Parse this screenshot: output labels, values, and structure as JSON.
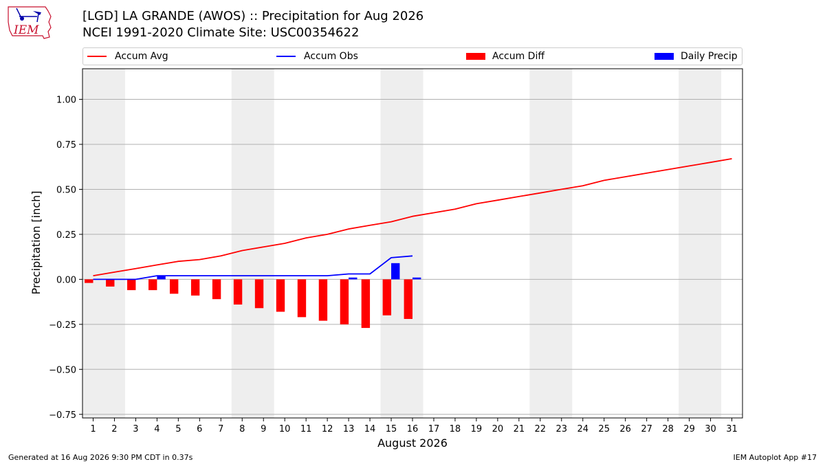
{
  "header": {
    "logo_text": "IEM",
    "title_line1": "[LGD] LA GRANDE (AWOS) :: Precipitation for Aug 2026",
    "title_line2": "NCEI 1991-2020 Climate Site: USC00354622"
  },
  "legend": {
    "placement": "top",
    "items": [
      {
        "label": "Accum Avg",
        "color": "#ff0000",
        "kind": "line"
      },
      {
        "label": "Accum Obs",
        "color": "#0000ff",
        "kind": "line"
      },
      {
        "label": "Accum Diff",
        "color": "#ff0000",
        "kind": "patch"
      },
      {
        "label": "Daily Precip",
        "color": "#0000ff",
        "kind": "patch"
      }
    ]
  },
  "footer": {
    "left": "Generated at 16 Aug 2026 9:30 PM CDT in 0.37s",
    "right": "IEM Autoplot App #17"
  },
  "colors": {
    "avg_line": "#ff0000",
    "obs_line": "#0000ff",
    "diff_bar": "#ff0000",
    "daily_bar": "#0000ff",
    "weekend_shade": "#eeeeee",
    "grid": "#b0b0b0",
    "logo": "#c8102e"
  },
  "chart_data": {
    "type": "line",
    "xlabel": "August 2026",
    "ylabel": "Precipitation [inch]",
    "xlim": [
      0.5,
      31.5
    ],
    "ylim": [
      -0.77,
      1.17
    ],
    "grid": true,
    "x_ticks": [
      1,
      2,
      3,
      4,
      5,
      6,
      7,
      8,
      9,
      10,
      11,
      12,
      13,
      14,
      15,
      16,
      17,
      18,
      19,
      20,
      21,
      22,
      23,
      24,
      25,
      26,
      27,
      28,
      29,
      30,
      31
    ],
    "y_ticks": [
      -0.75,
      -0.5,
      -0.25,
      0.0,
      0.25,
      0.5,
      0.75,
      1.0
    ],
    "y_tick_labels": [
      "−0.75",
      "−0.50",
      "−0.25",
      "0.00",
      "0.25",
      "0.50",
      "0.75",
      "1.00"
    ],
    "weekend_shading": [
      [
        1,
        2
      ],
      [
        8,
        9
      ],
      [
        15,
        16
      ],
      [
        22,
        23
      ],
      [
        29,
        30
      ]
    ],
    "series": [
      {
        "name": "Accum Avg",
        "type": "line",
        "x": [
          1,
          2,
          3,
          4,
          5,
          6,
          7,
          8,
          9,
          10,
          11,
          12,
          13,
          14,
          15,
          16,
          17,
          18,
          19,
          20,
          21,
          22,
          23,
          24,
          25,
          26,
          27,
          28,
          29,
          30,
          31
        ],
        "values": [
          0.02,
          0.04,
          0.06,
          0.08,
          0.1,
          0.11,
          0.13,
          0.16,
          0.18,
          0.2,
          0.23,
          0.25,
          0.28,
          0.3,
          0.32,
          0.35,
          0.37,
          0.39,
          0.42,
          0.44,
          0.46,
          0.48,
          0.5,
          0.52,
          0.55,
          0.57,
          0.59,
          0.61,
          0.63,
          0.65,
          0.67
        ]
      },
      {
        "name": "Accum Obs",
        "type": "line",
        "x": [
          1,
          2,
          3,
          4,
          5,
          6,
          7,
          8,
          9,
          10,
          11,
          12,
          13,
          14,
          15,
          16
        ],
        "values": [
          0.0,
          0.0,
          0.0,
          0.02,
          0.02,
          0.02,
          0.02,
          0.02,
          0.02,
          0.02,
          0.02,
          0.02,
          0.03,
          0.03,
          0.12,
          0.13
        ]
      },
      {
        "name": "Accum Diff",
        "type": "bar",
        "x": [
          1,
          2,
          3,
          4,
          5,
          6,
          7,
          8,
          9,
          10,
          11,
          12,
          13,
          14,
          15,
          16
        ],
        "values": [
          -0.02,
          -0.04,
          -0.06,
          -0.06,
          -0.08,
          -0.09,
          -0.11,
          -0.14,
          -0.16,
          -0.18,
          -0.21,
          -0.23,
          -0.25,
          -0.27,
          -0.2,
          -0.22
        ]
      },
      {
        "name": "Daily Precip",
        "type": "bar",
        "x": [
          1,
          2,
          3,
          4,
          5,
          6,
          7,
          8,
          9,
          10,
          11,
          12,
          13,
          14,
          15,
          16
        ],
        "values": [
          0,
          0,
          0,
          0.02,
          0,
          0,
          0,
          0,
          0,
          0,
          0,
          0,
          0.01,
          0,
          0.09,
          0.01
        ]
      }
    ]
  }
}
